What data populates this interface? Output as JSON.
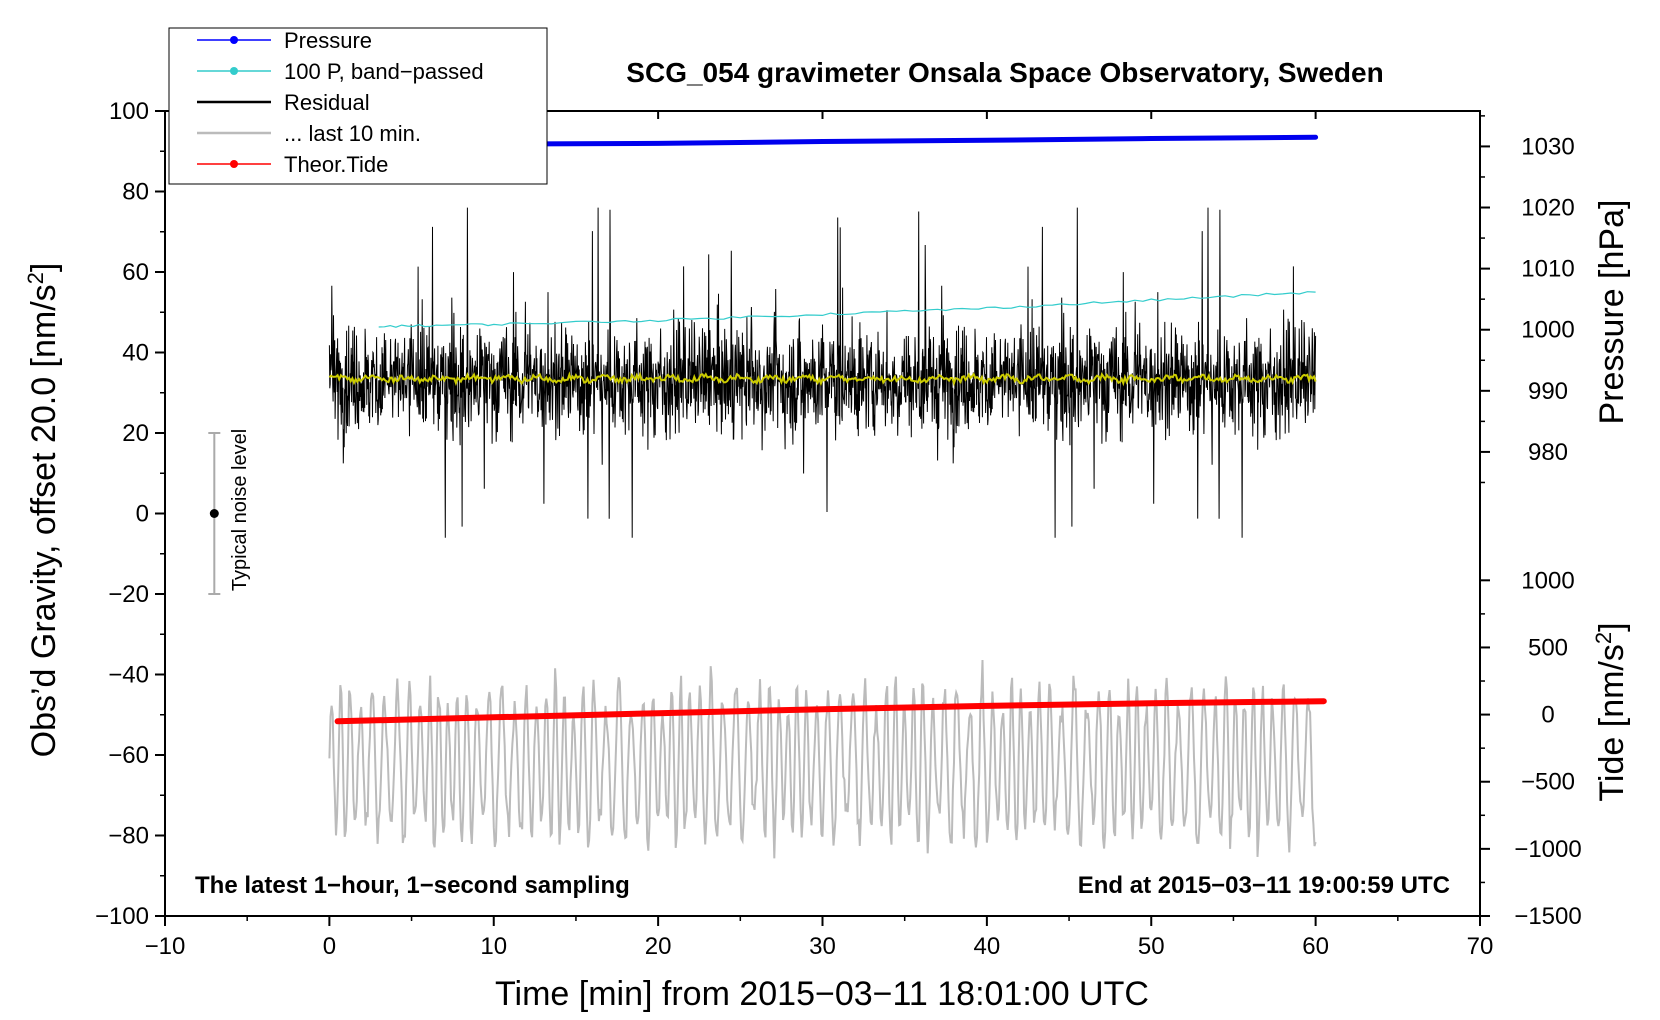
{
  "chart_data": {
    "type": "line",
    "title": "SCG_054 gravimeter Onsala Space Observatory, Sweden",
    "xlabel": "Time [min] from 2015−03−11 18:01:00 UTC",
    "ylabel_left": "Obs’d Gravity, offset 20.0 [nm/s",
    "ylabel_left_sup": "2",
    "ylabel_left_end": "]",
    "ylabel_pressure": "Pressure [hPa]",
    "ylabel_tide": "Tide [nm/s",
    "ylabel_tide_sup": "2",
    "ylabel_tide_end": "]",
    "xlim": [
      -10,
      70
    ],
    "ylim_left": [
      -100,
      100
    ],
    "x_ticks": [
      {
        "v": -10,
        "label": "−10"
      },
      {
        "v": 0,
        "label": "0"
      },
      {
        "v": 10,
        "label": "10"
      },
      {
        "v": 20,
        "label": "20"
      },
      {
        "v": 30,
        "label": "30"
      },
      {
        "v": 40,
        "label": "40"
      },
      {
        "v": 50,
        "label": "50"
      },
      {
        "v": 60,
        "label": "60"
      },
      {
        "v": 70,
        "label": "70"
      }
    ],
    "y_left_ticks": [
      {
        "v": 100,
        "label": "100"
      },
      {
        "v": 80,
        "label": "80"
      },
      {
        "v": 60,
        "label": "60"
      },
      {
        "v": 40,
        "label": "40"
      },
      {
        "v": 20,
        "label": "20"
      },
      {
        "v": 0,
        "label": "0"
      },
      {
        "v": -20,
        "label": "−20"
      },
      {
        "v": -40,
        "label": "−40"
      },
      {
        "v": -60,
        "label": "−60"
      },
      {
        "v": -80,
        "label": "−80"
      },
      {
        "v": -100,
        "label": "−100"
      }
    ],
    "pressure_ticks": [
      {
        "v": 1030,
        "label": "1030"
      },
      {
        "v": 1020,
        "label": "1020"
      },
      {
        "v": 1010,
        "label": "1010"
      },
      {
        "v": 1000,
        "label": "1000"
      },
      {
        "v": 990,
        "label": "990"
      },
      {
        "v": 980,
        "label": "980"
      }
    ],
    "tide_ticks": [
      {
        "v": 1000,
        "label": "1000"
      },
      {
        "v": 500,
        "label": "500"
      },
      {
        "v": 0,
        "label": "0"
      },
      {
        "v": -500,
        "label": "−500"
      },
      {
        "v": -1000,
        "label": "−1000"
      },
      {
        "v": -1500,
        "label": "−1500"
      }
    ],
    "pressure_scale": {
      "hpa_at_y": [
        [
          1030,
          91.2
        ],
        [
          980,
          15.3
        ]
      ]
    },
    "tide_scale": {
      "nms2_at_y": [
        [
          1000,
          -16.6
        ],
        [
          -1500,
          -100
        ]
      ]
    },
    "series": [
      {
        "name": "Pressure",
        "units": "hPa",
        "x": [
          0.5,
          10,
          20,
          30,
          40,
          50,
          60
        ],
        "values": [
          1030.3,
          1030.4,
          1030.5,
          1030.8,
          1031.0,
          1031.3,
          1031.5
        ]
      },
      {
        "name": "100 P, band−passed",
        "units": "nms2_left_axis",
        "x": [
          3,
          10,
          20,
          30,
          40,
          50,
          60
        ],
        "values": [
          46.5,
          47,
          48,
          49.5,
          51,
          53,
          55
        ]
      },
      {
        "name": "Residual",
        "units": "nms2_left_axis",
        "x_range": [
          0,
          60
        ],
        "mean": 33,
        "typical_range": [
          10,
          58
        ],
        "extremes": [
          -6,
          76
        ]
      },
      {
        "name": "Residual smoothed",
        "units": "nms2_left_axis",
        "x_range": [
          0,
          60
        ],
        "mean": 33.5
      },
      {
        "name": "... last 10 min.",
        "units": "nms2_left_axis",
        "x_range": [
          0,
          60
        ],
        "mean": -62,
        "typical_range": [
          -80,
          -40
        ],
        "extremes": [
          -91,
          -36
        ]
      },
      {
        "name": "Theor.Tide",
        "units": "nms2",
        "x": [
          0.5,
          10,
          20,
          30,
          40,
          50,
          60.5
        ],
        "values": [
          -50,
          -20,
          10,
          40,
          65,
          85,
          100
        ]
      }
    ],
    "noise_bar": {
      "x": -7,
      "center": 0,
      "low": -20,
      "high": 20,
      "label": "Typical noise level"
    },
    "legend": {
      "placement": "top-left",
      "entries": [
        {
          "label": "Pressure",
          "color": "#0000ff",
          "marker": "dot"
        },
        {
          "label": "100 P, band−passed",
          "color": "#33cccc",
          "marker": "dot"
        },
        {
          "label": "Residual",
          "color": "#000000",
          "marker": "line"
        },
        {
          "label": "... last 10 min.",
          "color": "#bbbbbb",
          "marker": "line"
        },
        {
          "label": "Theor.Tide",
          "color": "#ff0000",
          "marker": "dot"
        }
      ]
    },
    "annotations": {
      "bottom_left": "The latest 1−hour, 1−second sampling",
      "bottom_right": "End at 2015−03−11 19:00:59 UTC"
    },
    "colors": {
      "pressure": "#0000ee",
      "bandpassed": "#33cccc",
      "residual": "#000000",
      "smoothed": "#cccc00",
      "last10": "#bbbbbb",
      "tide": "#ff0000",
      "noisebar": "#aaaaaa"
    }
  }
}
